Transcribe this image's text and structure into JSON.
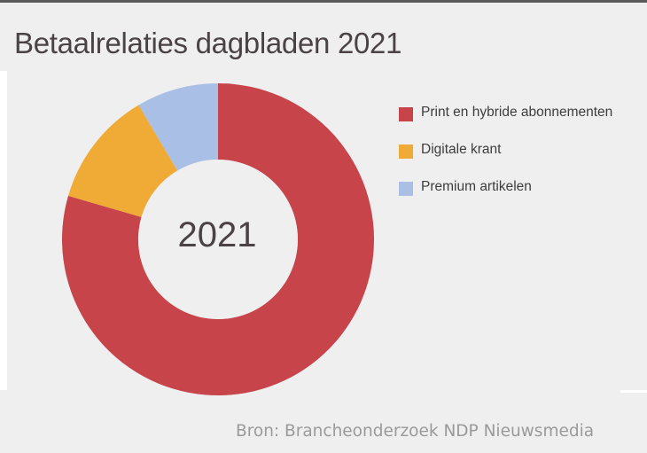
{
  "title": "Betaalrelaties dagbladen 2021",
  "center_label": "2021",
  "source": "Bron: Brancheonderzoek NDP Nieuwsmedia",
  "chart_data": {
    "type": "pie",
    "donut": true,
    "title": "Betaalrelaties dagbladen 2021",
    "center_text": "2021",
    "legend_position": "right",
    "slices": [
      {
        "name": "Print en hybride abonnementen",
        "value": 79.5,
        "color": "#c7444b"
      },
      {
        "name": "Digitale krant",
        "value": 12,
        "color": "#f0ab37"
      },
      {
        "name": "Premium artikelen",
        "value": 8.5,
        "color": "#a9bfe6"
      }
    ]
  }
}
